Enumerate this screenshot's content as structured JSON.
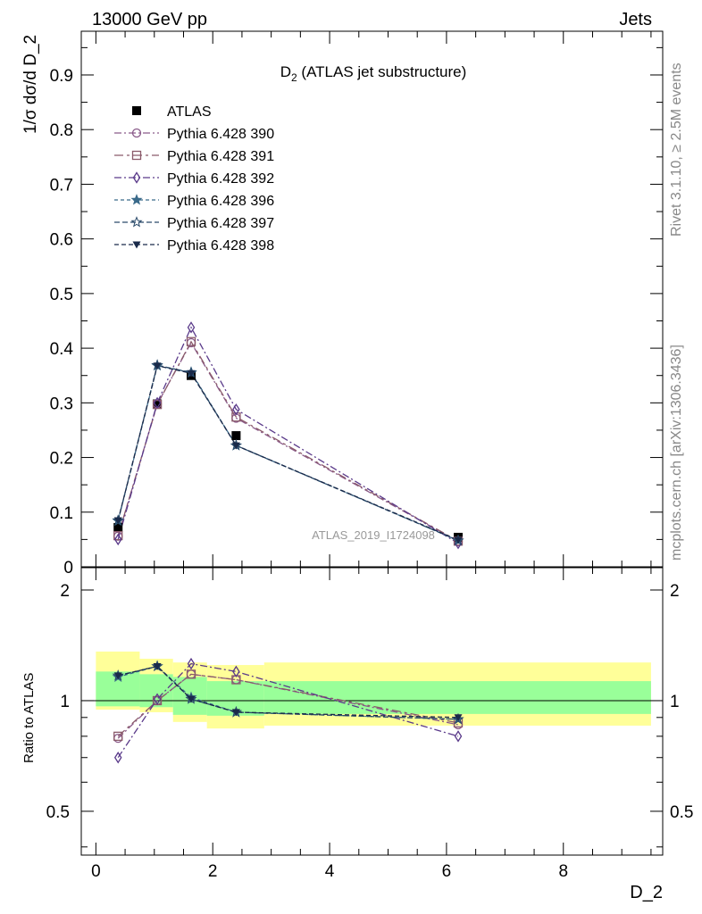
{
  "header": {
    "left": "13000 GeV pp",
    "right": "Jets"
  },
  "side": {
    "rivet": "Rivet 3.1.10, ≥ 2.5M events",
    "mcplots": "mcplots.cern.ch [arXiv:1306.3436]"
  },
  "chart_data": {
    "type": "line",
    "title": "D",
    "title_sub": "2",
    "title_rest": " (ATLAS jet substructure)",
    "watermark": "ATLAS_2019_I1724098",
    "xlabel": "D_2",
    "ylabel_main": "1/σ dσ/d D_2",
    "ylabel_ratio": "Ratio to ATLAS",
    "xlim": [
      -0.25,
      9.7
    ],
    "ylim_main": [
      0,
      0.98
    ],
    "ylim_ratio": [
      0.38,
      2.3
    ],
    "yscale_ratio": "log",
    "x_ticks": [
      "0",
      "2",
      "4",
      "6",
      "8"
    ],
    "y_ticks_main": [
      "0",
      "0.1",
      "0.2",
      "0.3",
      "0.4",
      "0.5",
      "0.6",
      "0.7",
      "0.8",
      "0.9"
    ],
    "y_ticks_ratio": [
      "0.5",
      "1",
      "2"
    ],
    "x": [
      0.38,
      1.05,
      1.63,
      2.4,
      6.2
    ],
    "atlas": {
      "name": "ATLAS",
      "values": [
        0.072,
        0.298,
        0.35,
        0.24,
        0.054
      ],
      "color": "#000000"
    },
    "bands": [
      {
        "x0": 0.0,
        "x1": 0.75,
        "yellow": [
          0.945,
          1.36
        ],
        "green": [
          0.965,
          1.2
        ]
      },
      {
        "x0": 0.75,
        "x1": 1.32,
        "yellow": [
          0.93,
          1.3
        ],
        "green": [
          0.96,
          1.18
        ]
      },
      {
        "x0": 1.32,
        "x1": 1.9,
        "yellow": [
          0.875,
          1.27
        ],
        "green": [
          0.915,
          1.16
        ]
      },
      {
        "x0": 1.9,
        "x1": 2.88,
        "yellow": [
          0.84,
          1.25
        ],
        "green": [
          0.91,
          1.13
        ]
      },
      {
        "x0": 2.88,
        "x1": 9.5,
        "yellow": [
          0.855,
          1.27
        ],
        "green": [
          0.92,
          1.13
        ]
      }
    ],
    "legend_position": "top-left",
    "series": [
      {
        "name": "Pythia 6.428 390",
        "color": "#8a5a8a",
        "dash": "8,3,2,3",
        "marker": "circle-open",
        "values": [
          0.056,
          0.298,
          0.41,
          0.272,
          0.046
        ],
        "ratio": [
          0.79,
          1.0,
          1.18,
          1.14,
          0.86
        ]
      },
      {
        "name": "Pythia 6.428 391",
        "color": "#8a5a6a",
        "dash": "10,4,3,4",
        "marker": "square-open",
        "values": [
          0.057,
          0.297,
          0.412,
          0.274,
          0.047
        ],
        "ratio": [
          0.8,
          1.0,
          1.18,
          1.14,
          0.87
        ]
      },
      {
        "name": "Pythia 6.428 392",
        "color": "#5a3a8a",
        "dash": "8,3,2,3",
        "marker": "diamond-open",
        "values": [
          0.05,
          0.3,
          0.438,
          0.288,
          0.043
        ],
        "ratio": [
          0.7,
          1.01,
          1.26,
          1.2,
          0.8
        ]
      },
      {
        "name": "Pythia 6.428 396",
        "color": "#3a6a8a",
        "dash": "4,3",
        "marker": "star-filled",
        "values": [
          0.084,
          0.368,
          0.356,
          0.222,
          0.048
        ],
        "ratio": [
          1.16,
          1.24,
          1.02,
          0.93,
          0.89
        ]
      },
      {
        "name": "Pythia 6.428 397",
        "color": "#2a4a6a",
        "dash": "6,3",
        "marker": "star-open",
        "values": [
          0.085,
          0.369,
          0.355,
          0.222,
          0.048
        ],
        "ratio": [
          1.17,
          1.24,
          1.01,
          0.93,
          0.89
        ]
      },
      {
        "name": "Pythia 6.428 398",
        "color": "#1a2a4a",
        "dash": "5,3",
        "marker": "triangle-down-filled",
        "values": [
          0.085,
          0.368,
          0.354,
          0.222,
          0.049
        ],
        "ratio": [
          1.17,
          1.24,
          1.01,
          0.93,
          0.9
        ]
      }
    ]
  }
}
